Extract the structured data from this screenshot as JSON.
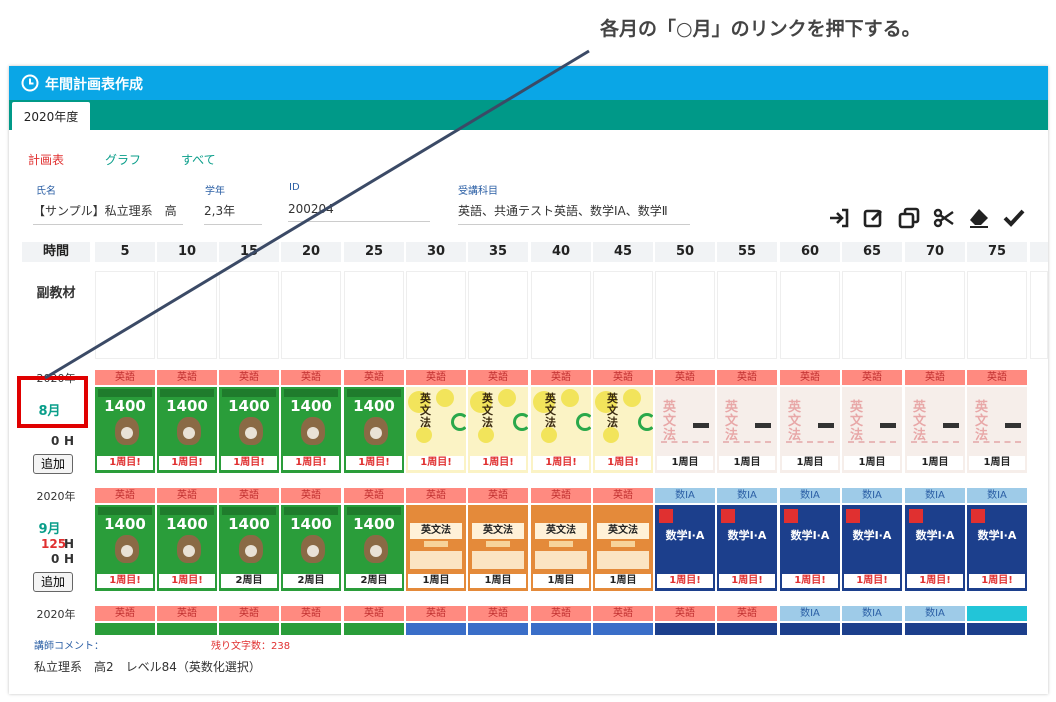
{
  "annotation": {
    "text": "各月の「○月」のリンクを押下する。"
  },
  "app": {
    "title": "年間計画表作成",
    "tab": "2020年度"
  },
  "view_links": {
    "plan": "計画表",
    "graph": "グラフ",
    "all": "すべて",
    "plan_color": "#e03030",
    "other_color": "#0a9e8a"
  },
  "fields": [
    {
      "label": "氏名",
      "value": "【サンプル】私立理系　高"
    },
    {
      "label": "学年",
      "value": "2,3年"
    },
    {
      "label": "ID",
      "value": "200204"
    },
    {
      "label": "受講科目",
      "value": "英語、共通テスト英語、数学ⅠA、数学Ⅱ"
    }
  ],
  "toolbar": [
    "login-icon",
    "edit-icon",
    "copy-icon",
    "scissors-icon",
    "eraser-icon",
    "check-icon"
  ],
  "time_header": {
    "label": "時間",
    "values": [
      "5",
      "10",
      "15",
      "20",
      "25",
      "30",
      "35",
      "40",
      "45",
      "50",
      "55",
      "60",
      "65",
      "70",
      "75"
    ]
  },
  "supplementary_label": "副教材",
  "rows": [
    {
      "year": "2020年",
      "month": "8月",
      "hours_top": "",
      "hours_bottom": "0",
      "h": "H",
      "add": "追加",
      "subjects": [
        "英語",
        "英語",
        "英語",
        "英語",
        "英語",
        "英語",
        "英語",
        "英語",
        "英語",
        "英語",
        "英語",
        "英語",
        "英語",
        "英語",
        "英語"
      ],
      "books": [
        {
          "type": "1400",
          "badge": "1周目!"
        },
        {
          "type": "1400",
          "badge": "1周目!"
        },
        {
          "type": "1400",
          "badge": "1周目!"
        },
        {
          "type": "1400",
          "badge": "1周目!"
        },
        {
          "type": "1400",
          "badge": "1周目!"
        },
        {
          "type": "Y",
          "badge": "1周目!"
        },
        {
          "type": "Y",
          "badge": "1周目!"
        },
        {
          "type": "Y",
          "badge": "1周目!"
        },
        {
          "type": "Y",
          "badge": "1周目!"
        },
        {
          "type": "P",
          "badge": "1周目"
        },
        {
          "type": "P",
          "badge": "1周目"
        },
        {
          "type": "P",
          "badge": "1周目"
        },
        {
          "type": "P",
          "badge": "1周目"
        },
        {
          "type": "P",
          "badge": "1周目"
        },
        {
          "type": "P",
          "badge": "1周目"
        }
      ]
    },
    {
      "year": "2020年",
      "month": "9月",
      "hours_top": "125",
      "hours_bottom": "0",
      "h": "H",
      "add": "追加",
      "subjects": [
        "英語",
        "英語",
        "英語",
        "英語",
        "英語",
        "英語",
        "英語",
        "英語",
        "英語",
        "数ⅠA",
        "数ⅠA",
        "数ⅠA",
        "数ⅠA",
        "数ⅠA",
        "数ⅠA"
      ],
      "books": [
        {
          "type": "1400",
          "badge": "1周目!"
        },
        {
          "type": "1400",
          "badge": "1周目!"
        },
        {
          "type": "1400",
          "badge": "2周目"
        },
        {
          "type": "1400",
          "badge": "2周目"
        },
        {
          "type": "1400",
          "badge": "2周目"
        },
        {
          "type": "O",
          "badge": "1周目"
        },
        {
          "type": "O",
          "badge": "1周目"
        },
        {
          "type": "O",
          "badge": "1周目"
        },
        {
          "type": "O",
          "badge": "1周目"
        },
        {
          "type": "B",
          "badge": "1周目!"
        },
        {
          "type": "B",
          "badge": "1周目!"
        },
        {
          "type": "B",
          "badge": "1周目!"
        },
        {
          "type": "B",
          "badge": "1周目!"
        },
        {
          "type": "B",
          "badge": "1周目!"
        },
        {
          "type": "B",
          "badge": "1周目!"
        }
      ]
    },
    {
      "year": "2020年",
      "subjects": [
        "英語",
        "英語",
        "英語",
        "英語",
        "英語",
        "英語",
        "英語",
        "英語",
        "英語",
        "英語",
        "英語",
        "数ⅠA",
        "数ⅠA",
        "数ⅠA",
        ""
      ]
    }
  ],
  "book_text": {
    "number": "1400",
    "eigo": "英文法",
    "math": "数学Ⅰ·A"
  },
  "teacher_comment": {
    "label": "講師コメント：",
    "remaining": "残り文字数：238",
    "text": "私立理系　高2　レベル84（英数化選択）"
  }
}
